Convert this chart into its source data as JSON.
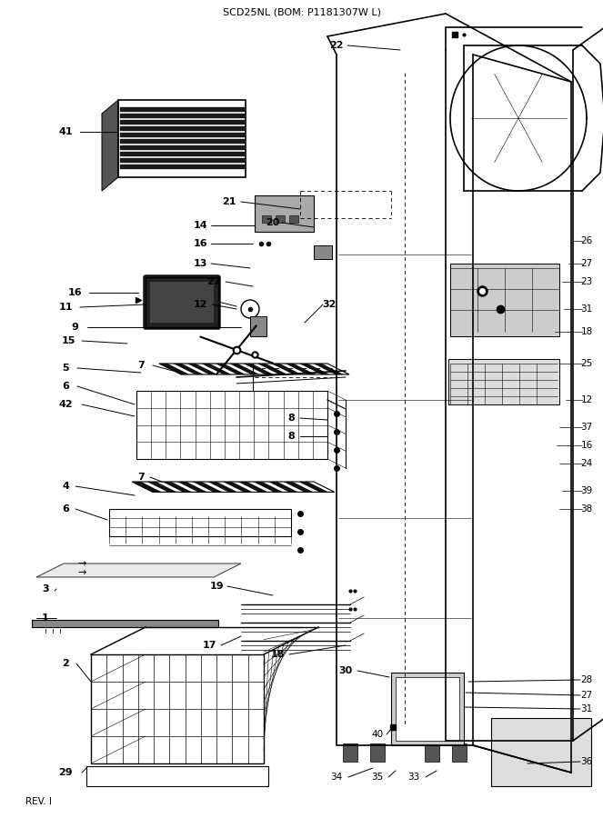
{
  "title": "SCD25NL (BOM: P1181307W L)",
  "rev_text": "REV. I",
  "bg": "#ffffff",
  "lc": "#000000",
  "tc": "#000000",
  "figsize": [
    6.63,
    9.0
  ],
  "dpi": 100
}
